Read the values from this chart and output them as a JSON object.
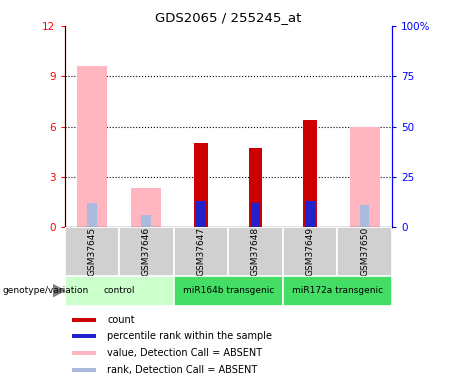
{
  "title": "GDS2065 / 255245_at",
  "samples": [
    "GSM37645",
    "GSM37646",
    "GSM37647",
    "GSM37648",
    "GSM37649",
    "GSM37650"
  ],
  "value_absent": [
    9.6,
    2.3,
    0,
    0,
    0,
    6.0
  ],
  "rank_absent_pct": [
    12,
    6,
    0,
    0,
    0,
    11
  ],
  "count_value": [
    0,
    0,
    5.0,
    4.7,
    6.4,
    0
  ],
  "count_rank_pct": [
    0,
    0,
    1.3,
    1.2,
    1.3,
    0
  ],
  "percentile_pct": [
    0,
    0,
    13,
    12,
    13,
    0
  ],
  "ylim_left": [
    0,
    12
  ],
  "ylim_right": [
    0,
    100
  ],
  "yticks_left": [
    0,
    3,
    6,
    9,
    12
  ],
  "ytick_labels_left": [
    "0",
    "3",
    "6",
    "9",
    "12"
  ],
  "yticks_right": [
    0,
    25,
    50,
    75,
    100
  ],
  "ytick_labels_right": [
    "0",
    "25",
    "50",
    "75",
    "100%"
  ],
  "color_count": "#CC0000",
  "color_percentile": "#2222CC",
  "color_value_absent": "#FFB6C1",
  "color_rank_absent": "#AABBDD",
  "group_defs": [
    {
      "label": "control",
      "start": 0,
      "end": 1,
      "color": "#CCFFCC"
    },
    {
      "label": "miR164b transgenic",
      "start": 2,
      "end": 3,
      "color": "#44DD66"
    },
    {
      "label": "miR172a transgenic",
      "start": 4,
      "end": 5,
      "color": "#44DD66"
    }
  ],
  "legend_items": [
    {
      "label": "count",
      "color": "#CC0000"
    },
    {
      "label": "percentile rank within the sample",
      "color": "#2222CC"
    },
    {
      "label": "value, Detection Call = ABSENT",
      "color": "#FFB6C1"
    },
    {
      "label": "rank, Detection Call = ABSENT",
      "color": "#AABBDD"
    }
  ]
}
